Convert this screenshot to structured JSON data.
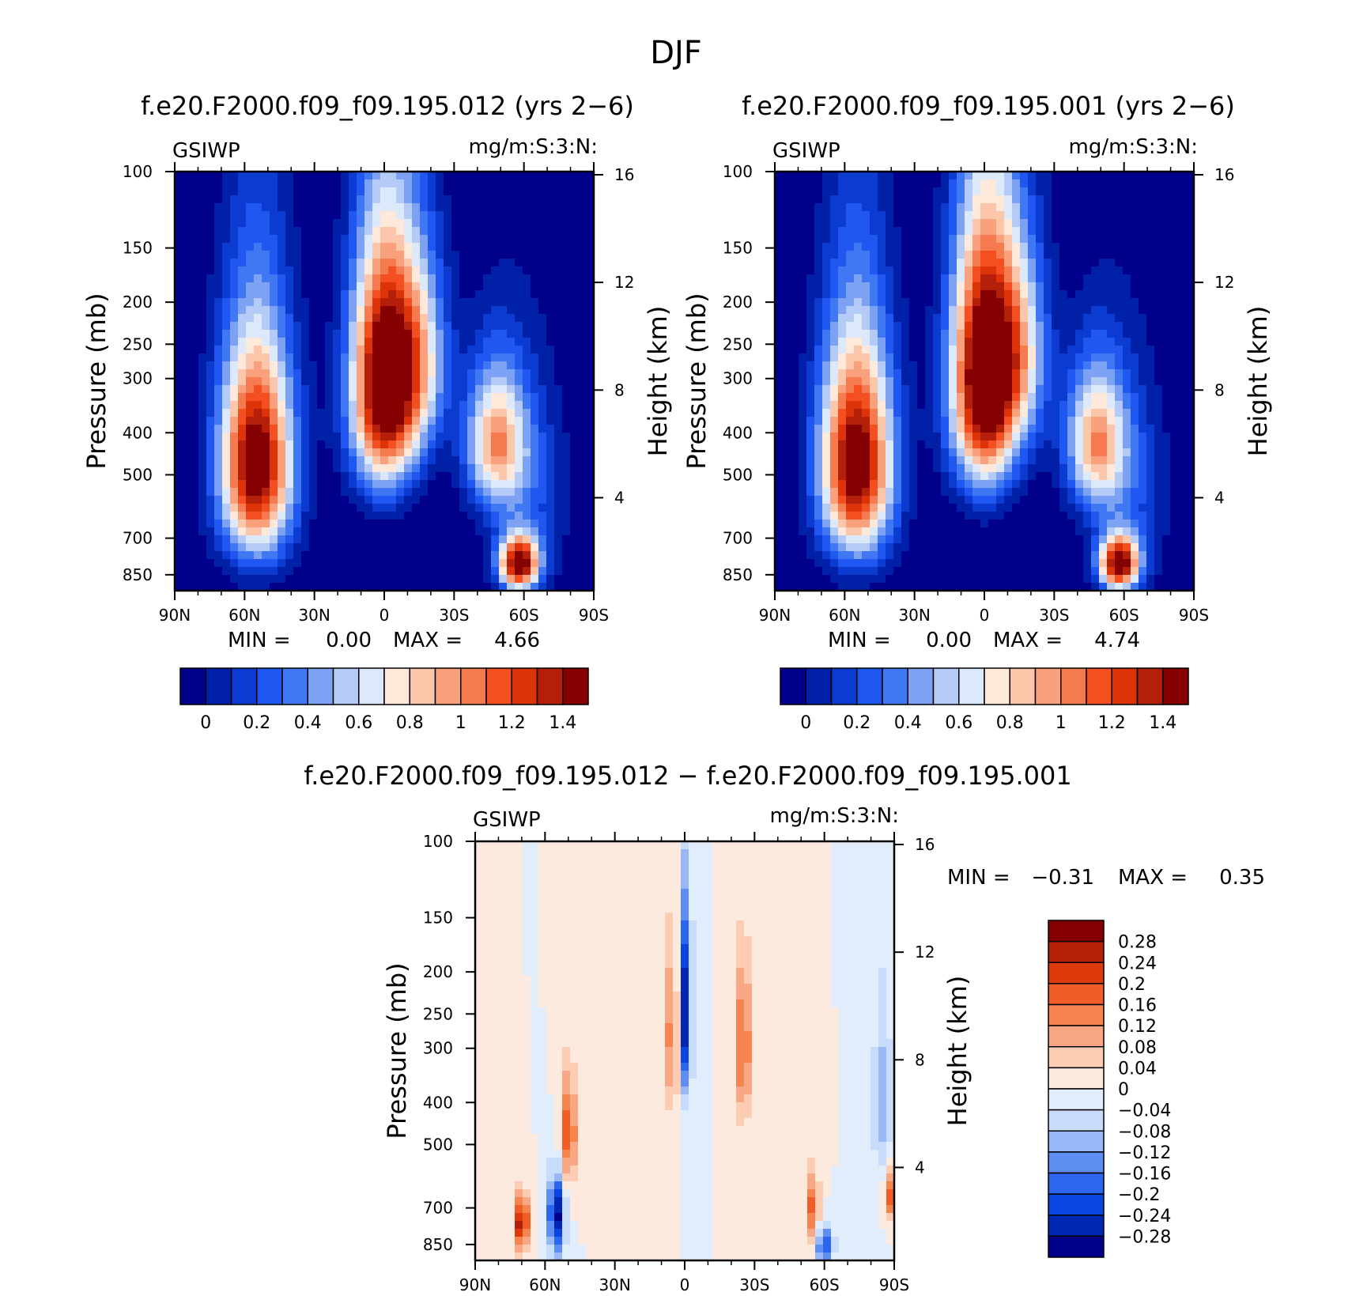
{
  "figure": {
    "title": "DJF",
    "colors": {
      "abs_levels": [
        "#00008b",
        "#0020a8",
        "#0b3bd1",
        "#1f57f0",
        "#3f78f2",
        "#7ea2f3",
        "#b4caf7",
        "#dce9fb",
        "#fde8da",
        "#fcc6ab",
        "#f9a07d",
        "#f67a4f",
        "#f34f21",
        "#dd3308",
        "#b31f09",
        "#850000"
      ],
      "diff_levels": [
        "#00008b",
        "#0027b4",
        "#0b45e0",
        "#2a66f0",
        "#5f8ef3",
        "#97b7f7",
        "#c7dbfb",
        "#e2edfc",
        "#fdeadf",
        "#fcccb3",
        "#f8a785",
        "#f6844f",
        "#f15d27",
        "#de3a0c",
        "#b32109",
        "#850000"
      ]
    }
  },
  "chart_data": [
    {
      "type": "heatmap",
      "panel": "left",
      "title": "f.e20.F2000.f09_f09.195.012 (yrs 2−6)",
      "field_label": "GSIWP",
      "units": "mg/m:S:3:N:",
      "xlabel": "",
      "ylabel": "Pressure (mb)",
      "y2label": "Height (km)",
      "x_ticks": [
        "90N",
        "60N",
        "30N",
        "0",
        "30S",
        "60S",
        "90S"
      ],
      "y_ticks": [
        100,
        150,
        200,
        250,
        300,
        400,
        500,
        700,
        850
      ],
      "y2_ticks": [
        16,
        12,
        8,
        4
      ],
      "min_label": "MIN =",
      "min_value": "0.00",
      "max_label": "MAX =",
      "max_value": "4.66",
      "colorbar_ticks": [
        "0",
        "0.2",
        "0.4",
        "0.6",
        "0.8",
        "1",
        "1.2",
        "1.4"
      ],
      "blobs": [
        {
          "lat": 55,
          "p": 470,
          "slat": 11,
          "sp": 190,
          "amp": 1.7
        },
        {
          "lat": 0,
          "p": 310,
          "slat": 10,
          "sp": 140,
          "amp": 1.8
        },
        {
          "lat": -15,
          "p": 270,
          "slat": 9,
          "sp": 100,
          "amp": 0.7
        },
        {
          "lat": -48,
          "p": 420,
          "slat": 9,
          "sp": 110,
          "amp": 1.0
        },
        {
          "lat": -58,
          "p": 800,
          "slat": 6,
          "sp": 80,
          "amp": 1.6
        },
        {
          "lat": -62,
          "p": 550,
          "slat": 12,
          "sp": 220,
          "amp": 0.3
        }
      ]
    },
    {
      "type": "heatmap",
      "panel": "right",
      "title": "f.e20.F2000.f09_f09.195.001 (yrs 2−6)",
      "field_label": "GSIWP",
      "units": "mg/m:S:3:N:",
      "xlabel": "",
      "ylabel": "Pressure (mb)",
      "y2label": "Height (km)",
      "x_ticks": [
        "90N",
        "60N",
        "30N",
        "0",
        "30S",
        "60S",
        "90S"
      ],
      "y_ticks": [
        100,
        150,
        200,
        250,
        300,
        400,
        500,
        700,
        850
      ],
      "y2_ticks": [
        16,
        12,
        8,
        4
      ],
      "min_label": "MIN =",
      "min_value": "0.00",
      "max_label": "MAX =",
      "max_value": "4.74",
      "colorbar_ticks": [
        "0",
        "0.2",
        "0.4",
        "0.6",
        "0.8",
        "1",
        "1.2",
        "1.4"
      ],
      "blobs": [
        {
          "lat": 55,
          "p": 470,
          "slat": 11,
          "sp": 190,
          "amp": 1.7
        },
        {
          "lat": 0,
          "p": 300,
          "slat": 10,
          "sp": 145,
          "amp": 1.85
        },
        {
          "lat": -15,
          "p": 260,
          "slat": 9,
          "sp": 100,
          "amp": 0.7
        },
        {
          "lat": -48,
          "p": 420,
          "slat": 9,
          "sp": 110,
          "amp": 1.0
        },
        {
          "lat": -58,
          "p": 800,
          "slat": 6,
          "sp": 80,
          "amp": 1.6
        },
        {
          "lat": -62,
          "p": 550,
          "slat": 12,
          "sp": 220,
          "amp": 0.3
        }
      ]
    },
    {
      "type": "heatmap",
      "panel": "difference",
      "title": "f.e20.F2000.f09_f09.195.012 − f.e20.F2000.f09_f09.195.001",
      "field_label": "GSIWP",
      "units": "mg/m:S:3:N:",
      "xlabel": "",
      "ylabel": "Pressure (mb)",
      "y2label": "Height (km)",
      "x_ticks": [
        "90N",
        "60N",
        "30N",
        "0",
        "30S",
        "60S",
        "90S"
      ],
      "y_ticks": [
        100,
        150,
        200,
        250,
        300,
        400,
        500,
        700,
        850
      ],
      "y2_ticks": [
        16,
        12,
        8,
        4
      ],
      "min_label": "MIN =",
      "min_value": "−0.31",
      "max_label": "MAX =",
      "max_value": "0.35",
      "colorbar_ticks": [
        "0.28",
        "0.24",
        "0.2",
        "0.16",
        "0.12",
        "0.08",
        "0.04",
        "0",
        "−0.04",
        "−0.08",
        "−0.12",
        "−0.16",
        "−0.2",
        "−0.24",
        "−0.28"
      ],
      "blobs": [
        {
          "lat": 70,
          "p": 760,
          "slat": 2,
          "sp": 80,
          "amp": 0.3
        },
        {
          "lat": 55,
          "p": 730,
          "slat": 2.5,
          "sp": 110,
          "amp": -0.3
        },
        {
          "lat": 50,
          "p": 470,
          "slat": 2.5,
          "sp": 100,
          "amp": 0.2
        },
        {
          "lat": 5,
          "p": 280,
          "slat": 2.5,
          "sp": 90,
          "amp": 0.16
        },
        {
          "lat": 0,
          "p": 250,
          "slat": 2,
          "sp": 90,
          "amp": -0.3
        },
        {
          "lat": -25,
          "p": 300,
          "slat": 2.5,
          "sp": 90,
          "amp": 0.18
        },
        {
          "lat": -55,
          "p": 700,
          "slat": 2,
          "sp": 90,
          "amp": 0.18
        },
        {
          "lat": -60,
          "p": 850,
          "slat": 2.5,
          "sp": 60,
          "amp": -0.22
        },
        {
          "lat": -88,
          "p": 650,
          "slat": 2,
          "sp": 60,
          "amp": 0.2
        },
        {
          "lat": -85,
          "p": 400,
          "slat": 3,
          "sp": 150,
          "amp": -0.1
        }
      ]
    }
  ]
}
